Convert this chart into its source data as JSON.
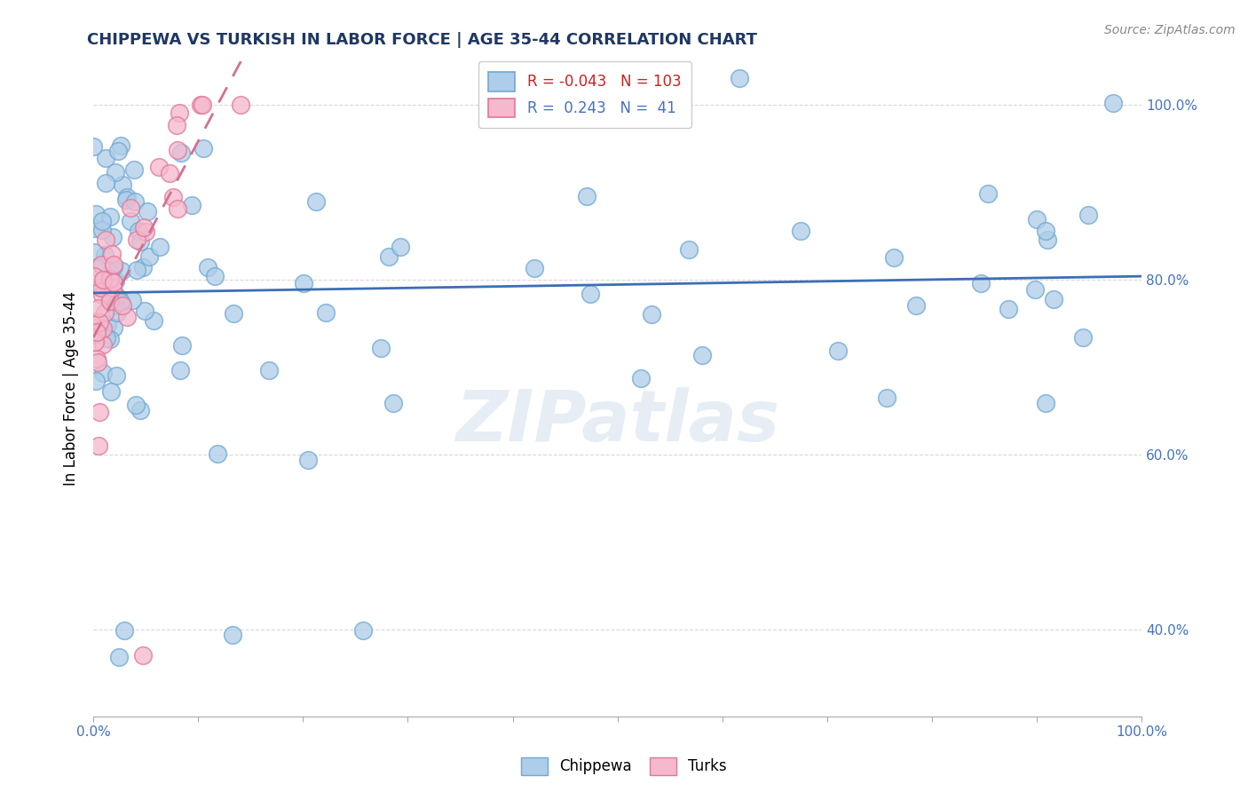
{
  "title": "CHIPPEWA VS TURKISH IN LABOR FORCE | AGE 35-44 CORRELATION CHART",
  "ylabel": "In Labor Force | Age 35-44",
  "source_text": "Source: ZipAtlas.com",
  "watermark": "ZIPatlas",
  "legend_chippewa_r": "-0.043",
  "legend_chippewa_n": "103",
  "legend_turks_r": "0.243",
  "legend_turks_n": "41",
  "chippewa_color": "#aecde8",
  "chippewa_edge": "#6fa8d4",
  "turks_color": "#f5b8cc",
  "turks_edge": "#e07898",
  "chippewa_line_color": "#3d6eb5",
  "turks_line_color": "#d47090",
  "background_color": "#ffffff",
  "grid_color": "#d8d8d8",
  "right_label_color": "#4472c4",
  "title_color": "#1f3864",
  "y_ticks": [
    0.4,
    0.6,
    0.8,
    1.0
  ],
  "y_tick_labels": [
    "40.0%",
    "60.0%",
    "80.0%",
    "100.0%"
  ],
  "ylim_low": 0.3,
  "ylim_high": 1.05,
  "xlim_low": 0.0,
  "xlim_high": 1.0
}
